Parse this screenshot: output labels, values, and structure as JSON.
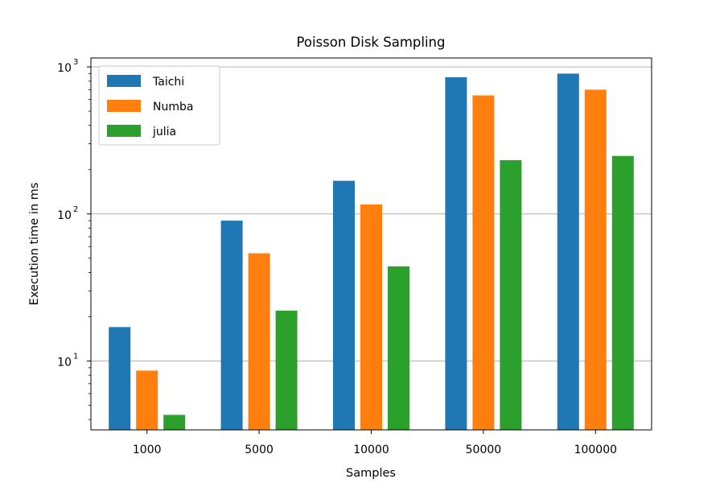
{
  "chart_data": {
    "type": "bar",
    "title": "Poisson Disk Sampling",
    "xlabel": "Samples",
    "ylabel": "Execution time in ms",
    "yscale": "log",
    "ylim": [
      3.4,
      1150
    ],
    "yticks": [
      {
        "value": 10,
        "base": "10",
        "exp": "1"
      },
      {
        "value": 100,
        "base": "10",
        "exp": "2"
      },
      {
        "value": 1000,
        "base": "10",
        "exp": "3"
      }
    ],
    "grid": "y",
    "legend_position": "top-left",
    "categories": [
      "1000",
      "5000",
      "10000",
      "50000",
      "100000"
    ],
    "series": [
      {
        "name": "Taichi",
        "color": "#1f77b4",
        "values": [
          17,
          90,
          168,
          850,
          900
        ]
      },
      {
        "name": "Numba",
        "color": "#ff7f0e",
        "values": [
          8.6,
          54,
          116,
          640,
          700
        ]
      },
      {
        "name": "julia",
        "color": "#2ca02c",
        "values": [
          4.3,
          22,
          44,
          232,
          248
        ]
      }
    ]
  }
}
